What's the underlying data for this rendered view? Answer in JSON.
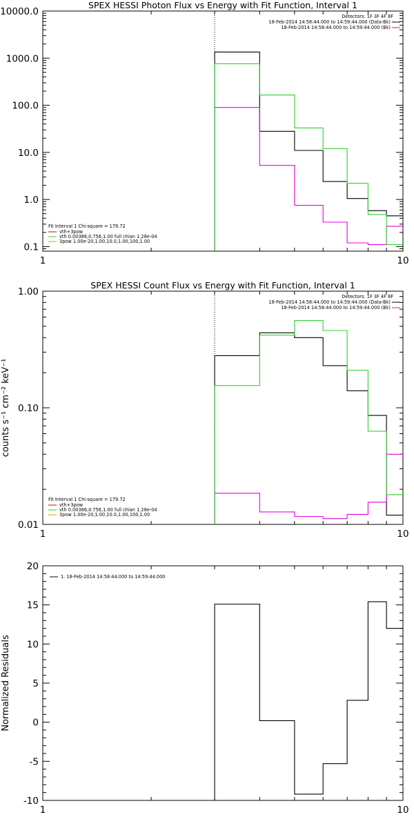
{
  "chart_data": [
    {
      "type": "line",
      "step": true,
      "title": "SPEX HESSI Photon Flux vs Energy with Fit Function, Interval 1",
      "xlabel": "",
      "ylabel": "",
      "x_scale": "log",
      "y_scale": "log",
      "xlim": [
        1,
        10
      ],
      "ylim": [
        0.08,
        10000
      ],
      "x_tick_labels": [
        {
          "v": 1,
          "t": "1"
        },
        {
          "v": 10,
          "t": "10"
        }
      ],
      "y_tick_labels": [
        {
          "v": 0.1,
          "t": "0.1"
        },
        {
          "v": 1,
          "t": "1.0"
        },
        {
          "v": 10,
          "t": "10.0"
        },
        {
          "v": 100,
          "t": "100.0"
        },
        {
          "v": 1000,
          "t": "1000.0"
        },
        {
          "v": 10000,
          "t": "10000.0"
        }
      ],
      "vline": 3.0,
      "bin_edges": [
        3.0,
        4.0,
        5.0,
        6.0,
        7.0,
        8.0,
        9.0,
        10.0
      ],
      "series": [
        {
          "name": "18-Feb-2014 14:58:44.000 to 14:59:44.000 (Data-Bk)",
          "color": "#000000",
          "values": [
            1350,
            28,
            11,
            2.4,
            1.05,
            0.58,
            0.45
          ]
        },
        {
          "name": "18-Feb-2014 14:58:44.000 to 14:59:44.000 (Bk)",
          "color": "#e000e0",
          "values": [
            90,
            5.3,
            0.75,
            0.33,
            0.12,
            0.11,
            0.27
          ]
        },
        {
          "name": "vth 0.00386,0.756,1.00 full chian 1.28e-04",
          "color": "#33cc33",
          "values": [
            760,
            165,
            33,
            12,
            2.2,
            0.48,
            0.11
          ]
        }
      ],
      "legend_top": {
        "header": "Detectors: 1F 3F 4F 8F",
        "entries": [
          {
            "text": "18-Feb-2014 14:58:44.000 to 14:59:44.000 (Data-Bk)",
            "color": "#000000"
          },
          {
            "text": "18-Feb-2014 14:58:44.000 to 14:59:44.000 (Bk)",
            "color": "#e000e0"
          }
        ]
      },
      "legend_bottom": {
        "header": "Fit Interval 1   Chi-square = 179.72",
        "entries": [
          {
            "text": "vth+3pow",
            "color": "#e00000"
          },
          {
            "text": "vth 0.00386,0.756,1.00  full chian 1.28e-04",
            "color": "#33cc33"
          },
          {
            "text": "3pow 1.00e-20,1.00,10.0,1.00,100,1.00",
            "color": "#e0a000"
          }
        ]
      }
    },
    {
      "type": "line",
      "step": true,
      "title": "SPEX HESSI Count Flux vs Energy with Fit Function, Interval 1",
      "xlabel": "",
      "ylabel": "counts s⁻¹ cm⁻² keV⁻¹",
      "x_scale": "log",
      "y_scale": "log",
      "xlim": [
        1,
        10
      ],
      "ylim": [
        0.01,
        1.0
      ],
      "x_tick_labels": [
        {
          "v": 1,
          "t": "1"
        },
        {
          "v": 10,
          "t": "10"
        }
      ],
      "y_tick_labels": [
        {
          "v": 0.01,
          "t": "0.01"
        },
        {
          "v": 0.1,
          "t": "0.10"
        },
        {
          "v": 1.0,
          "t": "1.00"
        }
      ],
      "vline": 3.0,
      "bin_edges": [
        3.0,
        4.0,
        5.0,
        6.0,
        7.0,
        8.0,
        9.0,
        10.0
      ],
      "series": [
        {
          "name": "18-Feb-2014 14:58:44.000 to 14:59:44.000 (Data-Bk)",
          "color": "#000000",
          "values": [
            0.28,
            0.44,
            0.4,
            0.23,
            0.14,
            0.086,
            0.012
          ]
        },
        {
          "name": "18-Feb-2014 14:58:44.000 to 14:59:44.000 (Bk)",
          "color": "#e000e0",
          "values": [
            0.0185,
            0.0128,
            0.0117,
            0.0112,
            0.0122,
            0.0155,
            0.04
          ]
        },
        {
          "name": "vth 0.00386,0.756,1.00 full chian 1.28e-04",
          "color": "#33cc33",
          "values": [
            0.155,
            0.42,
            0.56,
            0.46,
            0.21,
            0.063,
            0.018
          ]
        }
      ],
      "legend_top": {
        "header": "Detectors: 1F 3F 4F 8F",
        "entries": [
          {
            "text": "18-Feb-2014 14:58:44.000 to 14:59:44.000 (Data-Bk)",
            "color": "#000000"
          },
          {
            "text": "18-Feb-2014 14:58:44.000 to 14:59:44.000 (Bk)",
            "color": "#e000e0"
          }
        ]
      },
      "legend_bottom": {
        "header": "Fit Interval 1   Chi-square = 179.72",
        "entries": [
          {
            "text": "vth+3pow",
            "color": "#e00000"
          },
          {
            "text": "vth 0.00386,0.756,1.00  full chian 1.28e-04",
            "color": "#33cc33"
          },
          {
            "text": "3pow 1.00e-20,1.00,10.0,1.00,100,1.00",
            "color": "#e0a000"
          }
        ]
      }
    },
    {
      "type": "line",
      "step": true,
      "title": "",
      "xlabel": "",
      "ylabel": "Normalized Residuals",
      "x_scale": "log",
      "y_scale": "linear",
      "xlim": [
        1,
        10
      ],
      "ylim": [
        -10,
        20
      ],
      "x_tick_labels": [
        {
          "v": 1,
          "t": "1"
        },
        {
          "v": 10,
          "t": "10"
        }
      ],
      "y_tick_labels": [
        {
          "v": -10,
          "t": "-10"
        },
        {
          "v": -5,
          "t": "-5"
        },
        {
          "v": 0,
          "t": "0"
        },
        {
          "v": 5,
          "t": "5"
        },
        {
          "v": 10,
          "t": "10"
        },
        {
          "v": 15,
          "t": "15"
        },
        {
          "v": 20,
          "t": "20"
        }
      ],
      "bin_edges": [
        3.0,
        4.0,
        5.0,
        6.0,
        7.0,
        8.0,
        9.0,
        10.0
      ],
      "series": [
        {
          "name": "1. 18-Feb-2014 14:58:44.000 to 14:59:44.000",
          "color": "#000000",
          "values": [
            15.1,
            0.2,
            -9.2,
            -5.3,
            2.8,
            15.4,
            12.0
          ]
        }
      ],
      "legend_left": {
        "entries": [
          {
            "text": "1. 18-Feb-2014 14:58:44.000 to 14:59:44.000",
            "color": "#000000"
          }
        ]
      }
    }
  ]
}
